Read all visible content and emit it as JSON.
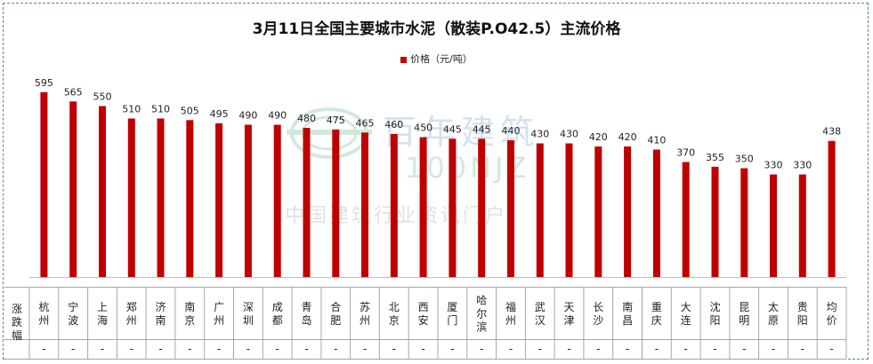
{
  "chart_data": {
    "type": "bar",
    "title": "3月11日全国主要城市水泥（散装P.O42.5）主流价格",
    "legend_position": "top-center",
    "series": [
      {
        "name": "价格（元/吨）",
        "color": "#c00000",
        "values": [
          595,
          565,
          550,
          510,
          510,
          505,
          495,
          490,
          490,
          480,
          475,
          465,
          460,
          450,
          445,
          445,
          440,
          430,
          430,
          420,
          420,
          410,
          370,
          355,
          350,
          330,
          330,
          438
        ]
      }
    ],
    "categories": [
      "杭州",
      "宁波",
      "上海",
      "郑州",
      "济南",
      "南京",
      "广州",
      "深圳",
      "成都",
      "青岛",
      "合肥",
      "苏州",
      "北京",
      "西安",
      "厦门",
      "哈尔滨",
      "福州",
      "武汉",
      "天津",
      "长沙",
      "南昌",
      "重庆",
      "大连",
      "沈阳",
      "昆明",
      "太原",
      "贵阳",
      "均价"
    ],
    "ylim": [
      0,
      620
    ],
    "grid": false,
    "table": {
      "row_label": "涨跌幅",
      "values": [
        "-",
        "-",
        "-",
        "-",
        "-",
        "-",
        "-",
        "-",
        "-",
        "-",
        "-",
        "-",
        "-",
        "-",
        "-",
        "-",
        "-",
        "-",
        "-",
        "-",
        "-",
        "-",
        "-",
        "-",
        "-",
        "-",
        "-",
        "-"
      ]
    }
  },
  "watermark": {
    "brand": "百年建筑",
    "latin": "100NJZ",
    "slogan": "中国建筑行业资讯门户"
  }
}
